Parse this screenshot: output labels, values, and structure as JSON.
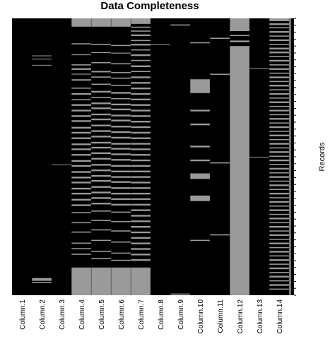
{
  "chart_data": {
    "type": "heatmap",
    "title": "Data Completeness",
    "xlabel": "",
    "ylabel": "Records",
    "columns": [
      "Column.1",
      "Column.2",
      "Column.3",
      "Column.4",
      "Column.5",
      "Column.6",
      "Column.7",
      "Column.8",
      "Column.9",
      "Column.10",
      "Column.11",
      "Column.12",
      "Column.13",
      "Column.14"
    ],
    "colors": {
      "present": "#000000",
      "missing": "#9a9a9a",
      "background": "#ffffff"
    },
    "note": "missing_intervals per column are [start,end] as fractions of the record index (0 = first record at top)",
    "missing_intervals": [
      [],
      [
        [
          0.134,
          0.136
        ],
        [
          0.146,
          0.148
        ],
        [
          0.168,
          0.17
        ],
        [
          0.938,
          0.948
        ],
        [
          0.952,
          0.956
        ]
      ],
      [
        [
          0.528,
          0.53
        ]
      ],
      [
        [
          0.0,
          0.03
        ],
        [
          0.09,
          0.094
        ],
        [
          0.13,
          0.133
        ],
        [
          0.166,
          0.17
        ],
        [
          0.18,
          0.186
        ],
        [
          0.2,
          0.203
        ],
        [
          0.22,
          0.225
        ],
        [
          0.25,
          0.254
        ],
        [
          0.27,
          0.276
        ],
        [
          0.292,
          0.296
        ],
        [
          0.31,
          0.316
        ],
        [
          0.33,
          0.336
        ],
        [
          0.35,
          0.356
        ],
        [
          0.368,
          0.374
        ],
        [
          0.392,
          0.398
        ],
        [
          0.41,
          0.416
        ],
        [
          0.43,
          0.436
        ],
        [
          0.452,
          0.458
        ],
        [
          0.47,
          0.476
        ],
        [
          0.49,
          0.496
        ],
        [
          0.512,
          0.518
        ],
        [
          0.53,
          0.536
        ],
        [
          0.552,
          0.558
        ],
        [
          0.572,
          0.578
        ],
        [
          0.59,
          0.596
        ],
        [
          0.612,
          0.618
        ],
        [
          0.63,
          0.636
        ],
        [
          0.652,
          0.658
        ],
        [
          0.672,
          0.678
        ],
        [
          0.7,
          0.704
        ],
        [
          0.736,
          0.74
        ],
        [
          0.77,
          0.774
        ],
        [
          0.81,
          0.814
        ],
        [
          0.83,
          0.834
        ],
        [
          0.85,
          0.854
        ],
        [
          0.9,
          1.0
        ]
      ],
      [
        [
          0.0,
          0.03
        ],
        [
          0.092,
          0.096
        ],
        [
          0.122,
          0.125
        ],
        [
          0.158,
          0.162
        ],
        [
          0.19,
          0.195
        ],
        [
          0.21,
          0.214
        ],
        [
          0.236,
          0.24
        ],
        [
          0.262,
          0.268
        ],
        [
          0.284,
          0.288
        ],
        [
          0.304,
          0.31
        ],
        [
          0.322,
          0.328
        ],
        [
          0.344,
          0.35
        ],
        [
          0.362,
          0.368
        ],
        [
          0.384,
          0.39
        ],
        [
          0.404,
          0.41
        ],
        [
          0.424,
          0.43
        ],
        [
          0.446,
          0.452
        ],
        [
          0.464,
          0.47
        ],
        [
          0.484,
          0.49
        ],
        [
          0.504,
          0.51
        ],
        [
          0.526,
          0.532
        ],
        [
          0.546,
          0.552
        ],
        [
          0.566,
          0.572
        ],
        [
          0.584,
          0.59
        ],
        [
          0.606,
          0.612
        ],
        [
          0.626,
          0.632
        ],
        [
          0.646,
          0.652
        ],
        [
          0.666,
          0.672
        ],
        [
          0.694,
          0.698
        ],
        [
          0.728,
          0.732
        ],
        [
          0.762,
          0.766
        ],
        [
          0.8,
          0.804
        ],
        [
          0.84,
          0.844
        ],
        [
          0.866,
          0.87
        ],
        [
          0.9,
          1.0
        ]
      ],
      [
        [
          0.0,
          0.03
        ],
        [
          0.096,
          0.1
        ],
        [
          0.124,
          0.127
        ],
        [
          0.162,
          0.166
        ],
        [
          0.194,
          0.198
        ],
        [
          0.214,
          0.218
        ],
        [
          0.24,
          0.244
        ],
        [
          0.266,
          0.272
        ],
        [
          0.288,
          0.292
        ],
        [
          0.308,
          0.314
        ],
        [
          0.326,
          0.332
        ],
        [
          0.348,
          0.354
        ],
        [
          0.366,
          0.372
        ],
        [
          0.388,
          0.394
        ],
        [
          0.408,
          0.414
        ],
        [
          0.428,
          0.434
        ],
        [
          0.45,
          0.456
        ],
        [
          0.468,
          0.474
        ],
        [
          0.488,
          0.494
        ],
        [
          0.508,
          0.514
        ],
        [
          0.53,
          0.536
        ],
        [
          0.55,
          0.556
        ],
        [
          0.57,
          0.576
        ],
        [
          0.588,
          0.594
        ],
        [
          0.61,
          0.616
        ],
        [
          0.63,
          0.636
        ],
        [
          0.65,
          0.656
        ],
        [
          0.67,
          0.676
        ],
        [
          0.698,
          0.702
        ],
        [
          0.732,
          0.736
        ],
        [
          0.766,
          0.77
        ],
        [
          0.806,
          0.81
        ],
        [
          0.846,
          0.85
        ],
        [
          0.872,
          0.876
        ],
        [
          0.9,
          1.0
        ]
      ],
      [
        [
          0.0,
          0.02
        ],
        [
          0.03,
          0.034
        ],
        [
          0.044,
          0.048
        ],
        [
          0.058,
          0.064
        ],
        [
          0.078,
          0.082
        ],
        [
          0.092,
          0.098
        ],
        [
          0.112,
          0.116
        ],
        [
          0.13,
          0.136
        ],
        [
          0.15,
          0.154
        ],
        [
          0.17,
          0.176
        ],
        [
          0.19,
          0.194
        ],
        [
          0.21,
          0.216
        ],
        [
          0.23,
          0.236
        ],
        [
          0.25,
          0.256
        ],
        [
          0.27,
          0.276
        ],
        [
          0.29,
          0.296
        ],
        [
          0.31,
          0.316
        ],
        [
          0.33,
          0.336
        ],
        [
          0.35,
          0.356
        ],
        [
          0.37,
          0.376
        ],
        [
          0.39,
          0.396
        ],
        [
          0.41,
          0.416
        ],
        [
          0.43,
          0.436
        ],
        [
          0.45,
          0.456
        ],
        [
          0.47,
          0.476
        ],
        [
          0.49,
          0.496
        ],
        [
          0.51,
          0.516
        ],
        [
          0.53,
          0.536
        ],
        [
          0.55,
          0.556
        ],
        [
          0.57,
          0.576
        ],
        [
          0.59,
          0.596
        ],
        [
          0.61,
          0.616
        ],
        [
          0.63,
          0.636
        ],
        [
          0.65,
          0.656
        ],
        [
          0.67,
          0.676
        ],
        [
          0.69,
          0.696
        ],
        [
          0.71,
          0.716
        ],
        [
          0.73,
          0.736
        ],
        [
          0.75,
          0.756
        ],
        [
          0.77,
          0.776
        ],
        [
          0.79,
          0.796
        ],
        [
          0.81,
          0.816
        ],
        [
          0.83,
          0.836
        ],
        [
          0.85,
          0.856
        ],
        [
          0.87,
          0.876
        ],
        [
          0.9,
          1.0
        ]
      ],
      [
        [
          0.094,
          0.096
        ]
      ],
      [
        [
          0.022,
          0.026
        ],
        [
          0.994,
          0.998
        ]
      ],
      [
        [
          0.086,
          0.09
        ],
        [
          0.22,
          0.27
        ],
        [
          0.33,
          0.336
        ],
        [
          0.38,
          0.386
        ],
        [
          0.46,
          0.466
        ],
        [
          0.51,
          0.516
        ],
        [
          0.56,
          0.58
        ],
        [
          0.64,
          0.66
        ],
        [
          0.8,
          0.804
        ]
      ],
      [
        [
          0.07,
          0.074
        ],
        [
          0.2,
          0.204
        ],
        [
          0.52,
          0.524
        ],
        [
          0.78,
          0.784
        ]
      ],
      [
        [
          0.0,
          0.046
        ],
        [
          0.06,
          0.064
        ],
        [
          0.08,
          0.086
        ],
        [
          0.1,
          1.0
        ]
      ],
      [
        [
          0.18,
          0.182
        ],
        [
          0.5,
          0.502
        ]
      ],
      [
        [
          0.0,
          0.01
        ],
        [
          0.018,
          0.024
        ],
        [
          0.032,
          0.036
        ],
        [
          0.046,
          0.052
        ],
        [
          0.062,
          0.066
        ],
        [
          0.076,
          0.082
        ],
        [
          0.092,
          0.096
        ],
        [
          0.106,
          0.112
        ],
        [
          0.12,
          0.126
        ],
        [
          0.136,
          0.14
        ],
        [
          0.15,
          0.156
        ],
        [
          0.166,
          0.17
        ],
        [
          0.18,
          0.186
        ],
        [
          0.196,
          0.2
        ],
        [
          0.21,
          0.216
        ],
        [
          0.226,
          0.23
        ],
        [
          0.24,
          0.246
        ],
        [
          0.256,
          0.26
        ],
        [
          0.27,
          0.276
        ],
        [
          0.286,
          0.29
        ],
        [
          0.3,
          0.306
        ],
        [
          0.316,
          0.32
        ],
        [
          0.33,
          0.336
        ],
        [
          0.346,
          0.35
        ],
        [
          0.36,
          0.366
        ],
        [
          0.376,
          0.38
        ],
        [
          0.39,
          0.396
        ],
        [
          0.406,
          0.41
        ],
        [
          0.42,
          0.426
        ],
        [
          0.436,
          0.44
        ],
        [
          0.45,
          0.456
        ],
        [
          0.466,
          0.47
        ],
        [
          0.48,
          0.486
        ],
        [
          0.496,
          0.5
        ],
        [
          0.51,
          0.516
        ],
        [
          0.526,
          0.53
        ],
        [
          0.54,
          0.546
        ],
        [
          0.556,
          0.56
        ],
        [
          0.57,
          0.576
        ],
        [
          0.586,
          0.59
        ],
        [
          0.6,
          0.606
        ],
        [
          0.616,
          0.62
        ],
        [
          0.63,
          0.636
        ],
        [
          0.646,
          0.65
        ],
        [
          0.66,
          0.666
        ],
        [
          0.676,
          0.68
        ],
        [
          0.69,
          0.696
        ],
        [
          0.706,
          0.71
        ],
        [
          0.72,
          0.726
        ],
        [
          0.736,
          0.74
        ],
        [
          0.75,
          0.756
        ],
        [
          0.766,
          0.77
        ],
        [
          0.78,
          0.786
        ],
        [
          0.796,
          0.8
        ],
        [
          0.81,
          0.816
        ],
        [
          0.826,
          0.83
        ],
        [
          0.84,
          0.846
        ],
        [
          0.856,
          0.86
        ],
        [
          0.87,
          0.876
        ],
        [
          0.886,
          0.89
        ],
        [
          0.9,
          0.906
        ],
        [
          0.916,
          0.92
        ],
        [
          0.93,
          0.936
        ],
        [
          0.946,
          0.95
        ],
        [
          0.96,
          0.966
        ],
        [
          0.976,
          0.98
        ]
      ]
    ]
  }
}
